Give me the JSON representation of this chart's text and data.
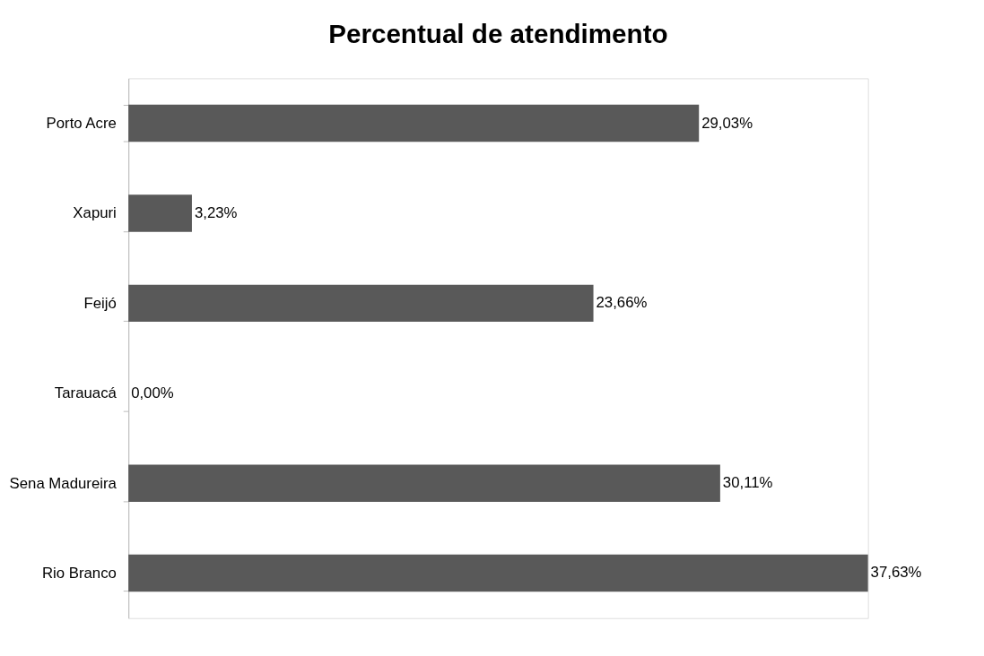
{
  "chart_data": {
    "type": "bar",
    "orientation": "horizontal",
    "title": "Percentual de atendimento",
    "categories": [
      "Porto Acre",
      "Xapuri",
      "Feijó",
      "Tarauacá",
      "Sena Madureira",
      "Rio Branco"
    ],
    "values": [
      29.03,
      3.23,
      23.66,
      0.0,
      30.11,
      37.63
    ],
    "value_labels": [
      "29,03%",
      "3,23%",
      "23,66%",
      "0,00%",
      "30,11%",
      "37,63%"
    ],
    "color": "#595959"
  }
}
